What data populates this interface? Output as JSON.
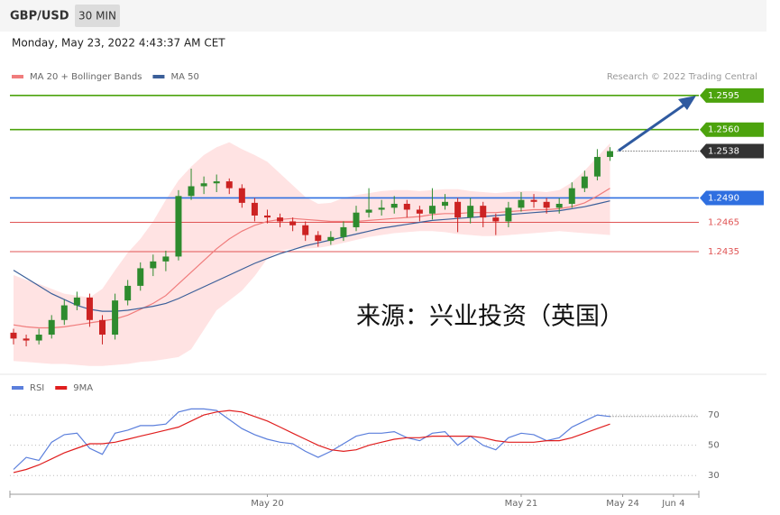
{
  "header": {
    "symbol": "GBP/USD",
    "interval": "30 MIN",
    "date": "Monday, May 23, 2022 4:43:37 AM CET"
  },
  "chart_data": [
    {
      "type": "candlestick",
      "credit": "Research © 2022 Trading Central",
      "annotation": "来源：兴业投资（英国）",
      "up_color": "#2e8b2e",
      "down_color": "#cc2222",
      "xlim": [
        0,
        54
      ],
      "ylim": [
        1.2314,
        1.2605
      ],
      "open": [
        1.2352,
        1.2346,
        1.2344,
        1.235,
        1.2365,
        1.238,
        1.2388,
        1.2365,
        1.235,
        1.2385,
        1.24,
        1.2418,
        1.2425,
        1.243,
        1.2492,
        1.2502,
        1.2505,
        1.2507,
        1.25,
        1.2485,
        1.2472,
        1.247,
        1.2466,
        1.2462,
        1.2452,
        1.2446,
        1.245,
        1.246,
        1.2475,
        1.2478,
        1.248,
        1.2484,
        1.2478,
        1.2474,
        1.2482,
        1.2486,
        1.247,
        1.2482,
        1.247,
        1.2466,
        1.248,
        1.2488,
        1.2486,
        1.248,
        1.2484,
        1.25,
        1.2512,
        1.2532
      ],
      "high": [
        1.2356,
        1.235,
        1.2356,
        1.237,
        1.2386,
        1.2394,
        1.2392,
        1.237,
        1.2392,
        1.2406,
        1.2424,
        1.2432,
        1.2436,
        1.2498,
        1.252,
        1.2512,
        1.2514,
        1.251,
        1.2504,
        1.249,
        1.2478,
        1.2474,
        1.247,
        1.2466,
        1.2456,
        1.2456,
        1.2466,
        1.2482,
        1.25,
        1.2488,
        1.2492,
        1.2488,
        1.2482,
        1.25,
        1.2494,
        1.249,
        1.249,
        1.2486,
        1.2474,
        1.2486,
        1.2496,
        1.2494,
        1.249,
        1.249,
        1.2506,
        1.2518,
        1.254,
        1.2542
      ],
      "low": [
        1.234,
        1.2338,
        1.234,
        1.2346,
        1.236,
        1.2375,
        1.2358,
        1.234,
        1.2345,
        1.238,
        1.2395,
        1.241,
        1.2415,
        1.2426,
        1.2488,
        1.2494,
        1.2496,
        1.2494,
        1.248,
        1.2466,
        1.2464,
        1.246,
        1.2456,
        1.2446,
        1.244,
        1.2442,
        1.2446,
        1.2456,
        1.247,
        1.2472,
        1.2474,
        1.247,
        1.2466,
        1.2468,
        1.2478,
        1.2455,
        1.2464,
        1.246,
        1.2452,
        1.246,
        1.2476,
        1.248,
        1.2474,
        1.2474,
        1.248,
        1.2496,
        1.2508,
        1.2528
      ],
      "close": [
        1.2346,
        1.2344,
        1.235,
        1.2365,
        1.238,
        1.2388,
        1.2365,
        1.235,
        1.2385,
        1.24,
        1.2418,
        1.2425,
        1.243,
        1.2492,
        1.2502,
        1.2505,
        1.2507,
        1.25,
        1.2485,
        1.2472,
        1.247,
        1.2466,
        1.2462,
        1.2452,
        1.2446,
        1.245,
        1.246,
        1.2475,
        1.2478,
        1.248,
        1.2484,
        1.2478,
        1.2474,
        1.2482,
        1.2486,
        1.247,
        1.2482,
        1.247,
        1.2466,
        1.248,
        1.2488,
        1.2486,
        1.248,
        1.2484,
        1.25,
        1.2512,
        1.2532,
        1.2538
      ],
      "series": [
        {
          "name": "MA 20 + Bollinger Bands",
          "color": "#f07c7c",
          "band_color": "#ffdede",
          "values": [
            1.236,
            1.2358,
            1.2357,
            1.2357,
            1.2358,
            1.236,
            1.2362,
            1.2364,
            1.2366,
            1.237,
            1.2376,
            1.2382,
            1.239,
            1.2402,
            1.2414,
            1.2426,
            1.2438,
            1.2448,
            1.2456,
            1.2462,
            1.2466,
            1.2468,
            1.2469,
            1.2468,
            1.2467,
            1.2466,
            1.2466,
            1.2466,
            1.2467,
            1.2468,
            1.2469,
            1.247,
            1.2471,
            1.2473,
            1.2474,
            1.2474,
            1.2475,
            1.2475,
            1.2475,
            1.2476,
            1.2477,
            1.2478,
            1.2478,
            1.2479,
            1.2481,
            1.2485,
            1.2492,
            1.25
          ],
          "band_upper": [
            1.2411,
            1.2406,
            1.2402,
            1.2397,
            1.2392,
            1.239,
            1.2388,
            1.2397,
            1.2416,
            1.2434,
            1.2448,
            1.2466,
            1.2488,
            1.2508,
            1.2522,
            1.2534,
            1.2542,
            1.2547,
            1.254,
            1.2534,
            1.2527,
            1.2515,
            1.2503,
            1.2491,
            1.2484,
            1.2485,
            1.249,
            1.2493,
            1.2495,
            1.2497,
            1.2498,
            1.2498,
            1.2497,
            1.2498,
            1.2499,
            1.2499,
            1.2497,
            1.2496,
            1.2495,
            1.2496,
            1.2497,
            1.2497,
            1.2496,
            1.2498,
            1.2506,
            1.2518,
            1.2532,
            1.2546
          ],
          "band_lower": [
            1.2323,
            1.2322,
            1.2321,
            1.232,
            1.232,
            1.2319,
            1.2318,
            1.2318,
            1.2319,
            1.232,
            1.2322,
            1.2323,
            1.2325,
            1.2327,
            1.2335,
            1.2355,
            1.2375,
            1.2385,
            1.2395,
            1.241,
            1.2428,
            1.2436,
            1.2438,
            1.2438,
            1.2439,
            1.2441,
            1.2444,
            1.2447,
            1.245,
            1.2452,
            1.2454,
            1.2455,
            1.2456,
            1.2456,
            1.2455,
            1.2453,
            1.2452,
            1.2451,
            1.2451,
            1.2452,
            1.2453,
            1.2454,
            1.2455,
            1.2456,
            1.2455,
            1.2454,
            1.2453,
            1.2452
          ]
        },
        {
          "name": "MA 50",
          "color": "#3b5f99",
          "values": [
            1.2416,
            1.2408,
            1.24,
            1.2392,
            1.2386,
            1.238,
            1.2376,
            1.2374,
            1.2374,
            1.2375,
            1.2377,
            1.2379,
            1.2382,
            1.2387,
            1.2393,
            1.2399,
            1.2405,
            1.2411,
            1.2417,
            1.2423,
            1.2428,
            1.2433,
            1.2437,
            1.2441,
            1.2444,
            1.2447,
            1.245,
            1.2453,
            1.2456,
            1.2459,
            1.2461,
            1.2463,
            1.2465,
            1.2467,
            1.2468,
            1.2469,
            1.247,
            1.2471,
            1.2472,
            1.2473,
            1.2474,
            1.2475,
            1.2476,
            1.2477,
            1.2479,
            1.2481,
            1.2484,
            1.2487
          ]
        }
      ],
      "levels": [
        {
          "value": 1.2595,
          "label": "1.2595",
          "color": "#4ca30d",
          "boxed": true,
          "line": "solid"
        },
        {
          "value": 1.256,
          "label": "1.2560",
          "color": "#4ca30d",
          "boxed": true,
          "line": "solid"
        },
        {
          "value": 1.2538,
          "label": "1.2538",
          "color": "#333333",
          "boxed": true,
          "line": "dotted"
        },
        {
          "value": 1.249,
          "label": "1.2490",
          "color": "#2f6fe0",
          "boxed": true,
          "line": "solid"
        },
        {
          "value": 1.2465,
          "label": "1.2465",
          "color": "#e05555",
          "boxed": false,
          "line": "solid"
        },
        {
          "value": 1.2435,
          "label": "1.2435",
          "color": "#e05555",
          "boxed": false,
          "line": "solid"
        }
      ]
    },
    {
      "type": "line",
      "xlim": [
        0,
        54
      ],
      "ylim": [
        20,
        82
      ],
      "yticks": [
        30,
        50,
        70
      ],
      "grid": true,
      "xticks": [
        {
          "value": 20,
          "label": "May 20"
        },
        {
          "value": 40,
          "label": "May 21"
        },
        {
          "value": 48,
          "label": "May 24"
        },
        {
          "value": 52,
          "label": "Jun 4"
        }
      ],
      "series": [
        {
          "name": "RSI",
          "color": "#5b7fdc",
          "values": [
            34,
            42,
            40,
            52,
            57,
            58,
            48,
            44,
            58,
            60,
            63,
            63,
            64,
            72,
            74,
            74,
            73,
            67,
            61,
            57,
            54,
            52,
            51,
            46,
            42,
            46,
            51,
            56,
            58,
            58,
            59,
            55,
            53,
            58,
            59,
            50,
            56,
            50,
            47,
            55,
            58,
            57,
            53,
            55,
            62,
            66,
            70,
            69
          ]
        },
        {
          "name": "9MA",
          "color": "#e01e1e",
          "values": [
            32,
            34,
            37,
            41,
            45,
            48,
            51,
            51,
            52,
            54,
            56,
            58,
            60,
            62,
            66,
            70,
            72,
            73,
            72,
            69,
            66,
            62,
            58,
            54,
            50,
            47,
            46,
            47,
            50,
            52,
            54,
            55,
            55,
            56,
            56,
            56,
            56,
            55,
            53,
            52,
            52,
            52,
            53,
            53,
            55,
            58,
            61,
            64
          ]
        }
      ]
    }
  ]
}
